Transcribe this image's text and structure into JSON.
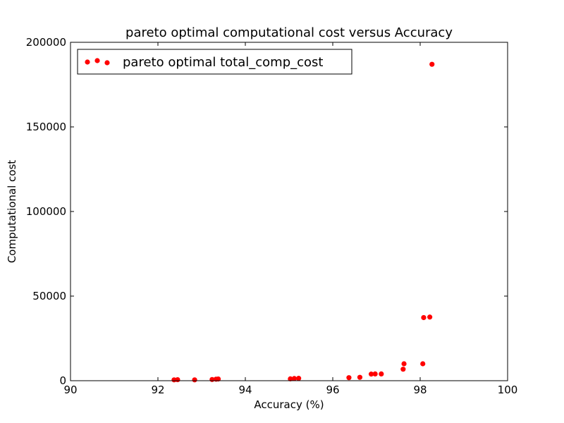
{
  "chart_data": {
    "type": "scatter",
    "title": "pareto optimal computational cost versus Accuracy",
    "xlabel": "Accuracy (%)",
    "ylabel": "Computational cost",
    "xlim": [
      90,
      100
    ],
    "ylim": [
      0,
      200000
    ],
    "xticks": [
      90,
      92,
      94,
      96,
      98,
      100
    ],
    "yticks": [
      0,
      50000,
      100000,
      150000,
      200000
    ],
    "xtick_labels": [
      "90",
      "92",
      "94",
      "96",
      "98",
      "100"
    ],
    "ytick_labels": [
      "0",
      "50000",
      "100000",
      "150000",
      "200000"
    ],
    "grid": false,
    "legend_position": "top-left",
    "series": [
      {
        "name": "pareto optimal total_comp_cost",
        "color": "#ff0000",
        "marker": "circle",
        "points": [
          {
            "x": 92.37,
            "y": 500
          },
          {
            "x": 92.45,
            "y": 600
          },
          {
            "x": 92.84,
            "y": 500
          },
          {
            "x": 93.24,
            "y": 700
          },
          {
            "x": 93.33,
            "y": 900
          },
          {
            "x": 93.38,
            "y": 1000
          },
          {
            "x": 95.03,
            "y": 1100
          },
          {
            "x": 95.12,
            "y": 1300
          },
          {
            "x": 95.22,
            "y": 1400
          },
          {
            "x": 96.37,
            "y": 1800
          },
          {
            "x": 96.62,
            "y": 2000
          },
          {
            "x": 96.88,
            "y": 3900
          },
          {
            "x": 96.97,
            "y": 4000
          },
          {
            "x": 97.11,
            "y": 4000
          },
          {
            "x": 97.61,
            "y": 6800
          },
          {
            "x": 97.63,
            "y": 10000
          },
          {
            "x": 98.06,
            "y": 10000
          },
          {
            "x": 98.08,
            "y": 37300
          },
          {
            "x": 98.22,
            "y": 37600
          },
          {
            "x": 98.27,
            "y": 187000
          }
        ]
      }
    ]
  }
}
